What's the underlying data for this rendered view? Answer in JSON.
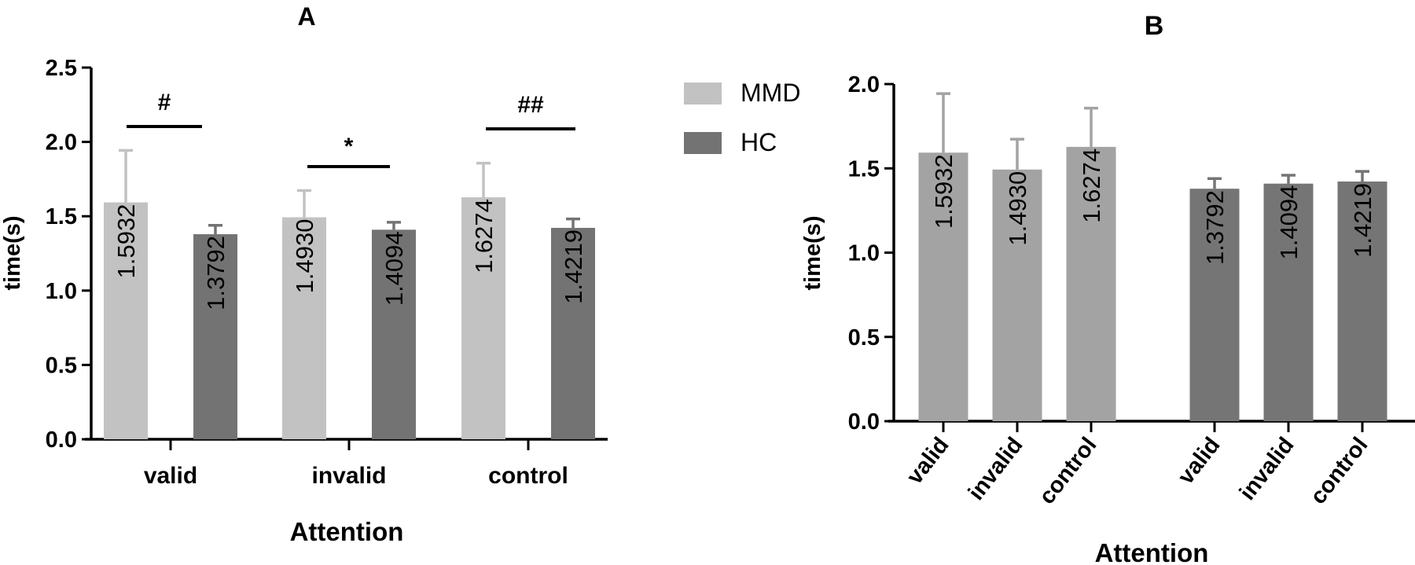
{
  "colors": {
    "mmd": "#c2c2c2",
    "hc": "#737373",
    "mmd_err": "#c2c2c2",
    "hc_err": "#737373",
    "b_mmd": "#a3a3a3",
    "b_hc": "#757575",
    "axis": "#000000"
  },
  "legend": {
    "mmd": "MMD",
    "hc": "HC"
  },
  "chart_data": [
    {
      "panel": "A",
      "type": "bar",
      "categories": [
        "valid",
        "invalid",
        "control"
      ],
      "series": [
        {
          "name": "MMD",
          "values": [
            1.5932,
            1.493,
            1.6274
          ],
          "error": [
            0.35,
            0.18,
            0.23
          ],
          "labels": [
            "1.5932",
            "1.4930",
            "1.6274"
          ]
        },
        {
          "name": "HC",
          "values": [
            1.3792,
            1.4094,
            1.4219
          ],
          "error": [
            0.06,
            0.05,
            0.06
          ],
          "labels": [
            "1.3792",
            "1.4094",
            "1.4219"
          ]
        }
      ],
      "ylabel": "time(s)",
      "xlabel": "Attention",
      "ylim": [
        0,
        2.5
      ],
      "yticks": [
        "0.0",
        "0.5",
        "1.0",
        "1.5",
        "2.0",
        "2.5"
      ],
      "significance": [
        "#",
        "*",
        "##"
      ]
    },
    {
      "panel": "B",
      "type": "bar",
      "categories": [
        "valid",
        "invalid",
        "control",
        "valid",
        "invalid",
        "control"
      ],
      "groups": [
        "MMD",
        "MMD",
        "MMD",
        "HC",
        "HC",
        "HC"
      ],
      "values": [
        1.5932,
        1.493,
        1.6274,
        1.3792,
        1.4094,
        1.4219
      ],
      "error": [
        0.35,
        0.18,
        0.23,
        0.06,
        0.05,
        0.06
      ],
      "labels": [
        "1.5932",
        "1.4930",
        "1.6274",
        "1.3792",
        "1.4094",
        "1.4219"
      ],
      "ylabel": "time(s)",
      "xlabel": "Attention",
      "ylim": [
        0,
        2.0
      ],
      "yticks": [
        "0.0",
        "0.5",
        "1.0",
        "1.5",
        "2.0"
      ]
    }
  ]
}
